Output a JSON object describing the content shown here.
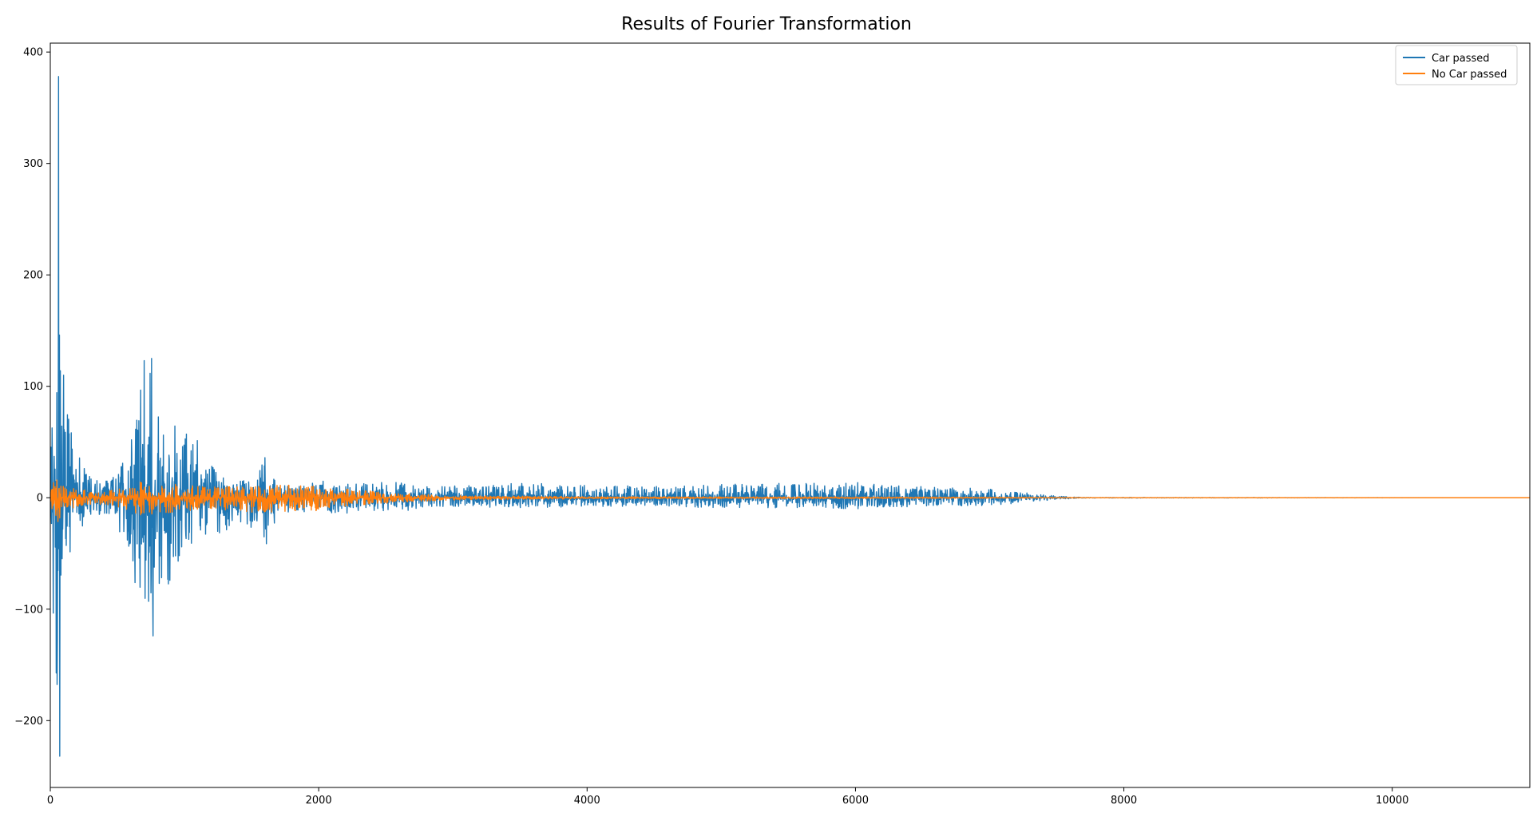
{
  "chart_data": {
    "type": "line",
    "title": "Results of Fourier Transformation",
    "xlabel": "",
    "ylabel": "",
    "xlim": [
      0,
      11025
    ],
    "ylim": [
      -260,
      408
    ],
    "x_ticks": [
      0,
      2000,
      4000,
      6000,
      8000,
      10000
    ],
    "x_tick_labels": [
      "0",
      "2000",
      "4000",
      "6000",
      "8000",
      "10000"
    ],
    "y_ticks": [
      -200,
      -100,
      0,
      100,
      200,
      300,
      400
    ],
    "y_tick_labels": [
      "−200",
      "−100",
      "0",
      "100",
      "200",
      "300",
      "400"
    ],
    "grid": false,
    "legend_position": "top-right",
    "series": [
      {
        "name": "Car passed",
        "color": "#1f77b4",
        "envelope": {
          "x": [
            0,
            30,
            60,
            70,
            80,
            100,
            150,
            200,
            300,
            400,
            500,
            600,
            650,
            700,
            750,
            800,
            900,
            1000,
            1100,
            1200,
            1300,
            1400,
            1500,
            1600,
            1700,
            1800,
            2000,
            2200,
            2400,
            2600,
            2800,
            3000,
            3500,
            4000,
            4500,
            5000,
            5500,
            6000,
            6500,
            7000,
            7300,
            7500,
            7700,
            11025
          ],
          "upper": [
            50,
            90,
            378,
            260,
            110,
            80,
            70,
            40,
            20,
            15,
            20,
            50,
            100,
            120,
            125,
            95,
            70,
            60,
            55,
            30,
            20,
            15,
            18,
            35,
            12,
            10,
            18,
            12,
            14,
            15,
            10,
            12,
            13,
            12,
            10,
            12,
            13,
            14,
            10,
            8,
            4,
            1.5,
            0.3,
            0
          ],
          "lower": [
            -50,
            -125,
            -230,
            -130,
            -90,
            -70,
            -50,
            -30,
            -20,
            -15,
            -25,
            -60,
            -90,
            -110,
            -125,
            -100,
            -75,
            -50,
            -40,
            -35,
            -30,
            -25,
            -35,
            -45,
            -15,
            -12,
            -15,
            -14,
            -13,
            -12,
            -10,
            -8,
            -9,
            -8,
            -8,
            -9,
            -9,
            -10,
            -8,
            -7,
            -4,
            -1.5,
            -0.3,
            0
          ]
        },
        "peaks": [
          {
            "x": 62,
            "y": 378
          },
          {
            "x": 70,
            "y": -232
          },
          {
            "x": 52,
            "y": -128
          },
          {
            "x": 98,
            "y": 110
          },
          {
            "x": 755,
            "y": 125
          },
          {
            "x": 700,
            "y": 123
          },
          {
            "x": 765,
            "y": -124
          },
          {
            "x": 1600,
            "y": 36
          }
        ]
      },
      {
        "name": "No Car passed",
        "color": "#ff7f0e",
        "envelope": {
          "x": [
            0,
            50,
            100,
            200,
            400,
            600,
            700,
            800,
            1000,
            1200,
            1500,
            1800,
            2000,
            2200,
            2500,
            2800,
            3000,
            3500,
            4000,
            5000,
            6000,
            7000,
            7500,
            7700,
            11025
          ],
          "upper": [
            10,
            18,
            12,
            8,
            6,
            10,
            16,
            12,
            12,
            10,
            10,
            12,
            10,
            8,
            5,
            3,
            2,
            1.5,
            1,
            0.8,
            0.8,
            0.5,
            0.3,
            0.1,
            0
          ],
          "lower": [
            -10,
            -25,
            -12,
            -8,
            -6,
            -12,
            -22,
            -15,
            -12,
            -10,
            -14,
            -14,
            -12,
            -8,
            -5,
            -3,
            -2,
            -1.5,
            -1,
            -0.8,
            -0.8,
            -0.5,
            -0.3,
            -0.1,
            0
          ]
        }
      }
    ]
  }
}
